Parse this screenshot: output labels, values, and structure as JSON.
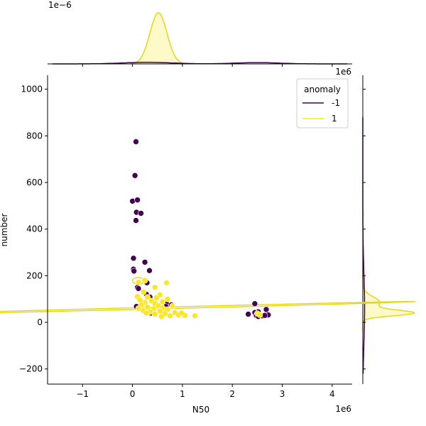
{
  "chart_data": {
    "type": "scatter",
    "title": "",
    "xlabel": "N50",
    "ylabel": "number",
    "x_offset_label": "1e6",
    "y_top_offset_label": "1e6",
    "marginal_offset_label": "1e−6",
    "xlim": [
      -1.7,
      4.4
    ],
    "ylim": [
      -265,
      1060
    ],
    "xticks": [
      -1,
      0,
      1,
      2,
      3,
      4
    ],
    "yticks": [
      -200,
      0,
      200,
      400,
      600,
      800,
      1000
    ],
    "grid": false,
    "legend": {
      "title": "anomaly",
      "placement": "top-right"
    },
    "colors": {
      "anomaly_neg1": "#440154",
      "anomaly_pos1": "#fde725",
      "kde_edge": "#e6d619"
    },
    "series": [
      {
        "name": "-1",
        "points": [
          [
            0.07,
            775
          ],
          [
            0.05,
            630
          ],
          [
            0.0,
            520
          ],
          [
            0.1,
            525
          ],
          [
            0.08,
            472
          ],
          [
            0.17,
            468
          ],
          [
            0.07,
            437
          ],
          [
            0.02,
            275
          ],
          [
            0.25,
            258
          ],
          [
            0.02,
            228
          ],
          [
            0.03,
            220
          ],
          [
            0.34,
            222
          ],
          [
            0.29,
            170
          ],
          [
            0.1,
            150
          ],
          [
            0.12,
            145
          ],
          [
            0.28,
            120
          ],
          [
            0.35,
            108
          ],
          [
            0.68,
            80
          ],
          [
            0.78,
            75
          ],
          [
            0.08,
            68
          ],
          [
            0.67,
            68
          ],
          [
            0.37,
            40
          ],
          [
            2.45,
            80
          ],
          [
            2.68,
            55
          ],
          [
            2.52,
            45
          ],
          [
            2.45,
            42
          ],
          [
            2.32,
            35
          ],
          [
            2.55,
            33
          ],
          [
            2.72,
            32
          ],
          [
            2.48,
            30
          ],
          [
            2.6,
            28
          ],
          [
            2.52,
            25
          ],
          [
            2.65,
            30
          ]
        ]
      },
      {
        "name": "1",
        "points": [
          [
            0.68,
            170
          ],
          [
            0.25,
            180
          ],
          [
            0.12,
            172
          ],
          [
            0.45,
            150
          ],
          [
            0.22,
            130
          ],
          [
            0.55,
            118
          ],
          [
            0.1,
            110
          ],
          [
            0.3,
            108
          ],
          [
            0.48,
            105
          ],
          [
            0.7,
            100
          ],
          [
            0.15,
            95
          ],
          [
            0.38,
            92
          ],
          [
            0.6,
            88
          ],
          [
            0.25,
            85
          ],
          [
            0.45,
            80
          ],
          [
            0.18,
            75
          ],
          [
            0.52,
            72
          ],
          [
            0.8,
            70
          ],
          [
            0.3,
            65
          ],
          [
            0.6,
            62
          ],
          [
            0.12,
            60
          ],
          [
            0.42,
            58
          ],
          [
            0.7,
            55
          ],
          [
            0.22,
            50
          ],
          [
            0.55,
            48
          ],
          [
            0.35,
            45
          ],
          [
            0.85,
            42
          ],
          [
            0.65,
            38
          ],
          [
            0.45,
            35
          ],
          [
            0.92,
            32
          ],
          [
            1.05,
            30
          ],
          [
            1.25,
            28
          ],
          [
            0.75,
            28
          ],
          [
            0.58,
            25
          ],
          [
            0.28,
            40
          ],
          [
            0.98,
            40
          ],
          [
            2.5,
            38
          ],
          [
            2.55,
            32
          ]
        ]
      }
    ]
  }
}
